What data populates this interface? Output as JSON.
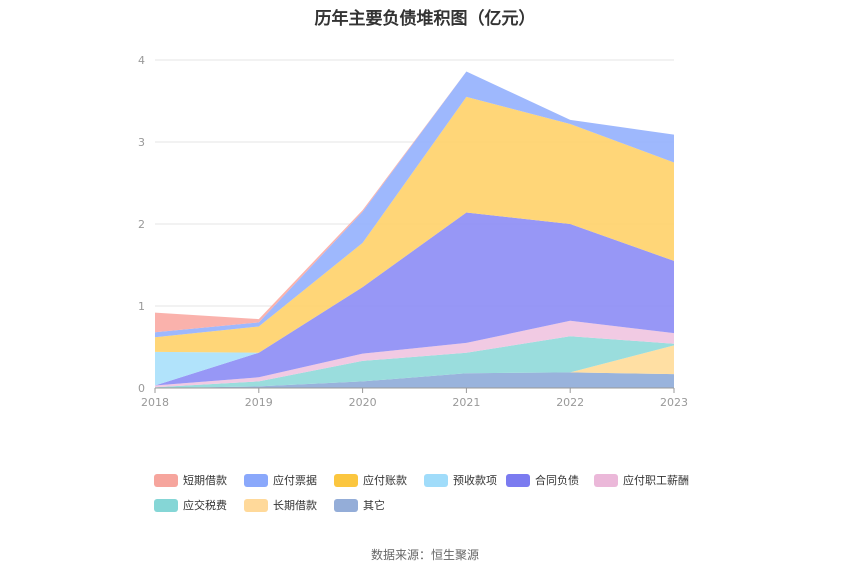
{
  "chart_data": {
    "type": "area",
    "title": "历年主要负债堆积图（亿元）",
    "categories": [
      "2018",
      "2019",
      "2020",
      "2021",
      "2022",
      "2023"
    ],
    "ylim": [
      0,
      4
    ],
    "yticks": [
      "0",
      "1",
      "2",
      "3",
      "4"
    ],
    "grid": true,
    "legend_position": "bottom",
    "series": [
      {
        "name": "其它",
        "color": "#8eabd8",
        "values": [
          0.0,
          0.02,
          0.08,
          0.18,
          0.19,
          0.17
        ]
      },
      {
        "name": "长期借款",
        "color": "#ffdc99",
        "values": [
          0.0,
          0.0,
          0.0,
          0.0,
          0.0,
          0.35
        ]
      },
      {
        "name": "应交税费",
        "color": "#8fd9d9",
        "values": [
          0.01,
          0.06,
          0.25,
          0.25,
          0.44,
          0.02
        ]
      },
      {
        "name": "应付职工薪酬",
        "color": "#f0c4e0",
        "values": [
          0.02,
          0.05,
          0.09,
          0.12,
          0.19,
          0.13
        ]
      },
      {
        "name": "合同负债",
        "color": "#8c8cf5",
        "values": [
          0.0,
          0.3,
          0.81,
          1.59,
          1.18,
          0.88
        ]
      },
      {
        "name": "预收款项",
        "color": "#a8e0fb",
        "values": [
          0.41,
          0.0,
          0.0,
          0.0,
          0.0,
          0.0
        ]
      },
      {
        "name": "应付账款",
        "color": "#ffd269",
        "values": [
          0.18,
          0.32,
          0.54,
          1.41,
          1.22,
          1.2
        ]
      },
      {
        "name": "应付票据",
        "color": "#93b0fd",
        "values": [
          0.06,
          0.05,
          0.38,
          0.31,
          0.05,
          0.34
        ]
      },
      {
        "name": "短期借款",
        "color": "#f9aaa3",
        "values": [
          0.24,
          0.04,
          0.02,
          0.0,
          0.0,
          0.0
        ]
      }
    ],
    "legend_order": [
      "短期借款",
      "应付票据",
      "应付账款",
      "预收款项",
      "合同负债",
      "应付职工薪酬",
      "应交税费",
      "长期借款",
      "其它"
    ],
    "legend_colors": {
      "短期借款": "#f6a59d",
      "应付票据": "#8aa8fb",
      "应付账款": "#fbc63f",
      "预收款项": "#a0dcfa",
      "合同负债": "#7b7bf0",
      "应付职工薪酬": "#ebb8d9",
      "应交税费": "#85d6d6",
      "长期借款": "#ffd99a",
      "其它": "#94add8"
    }
  },
  "source": "数据来源：恒生聚源"
}
